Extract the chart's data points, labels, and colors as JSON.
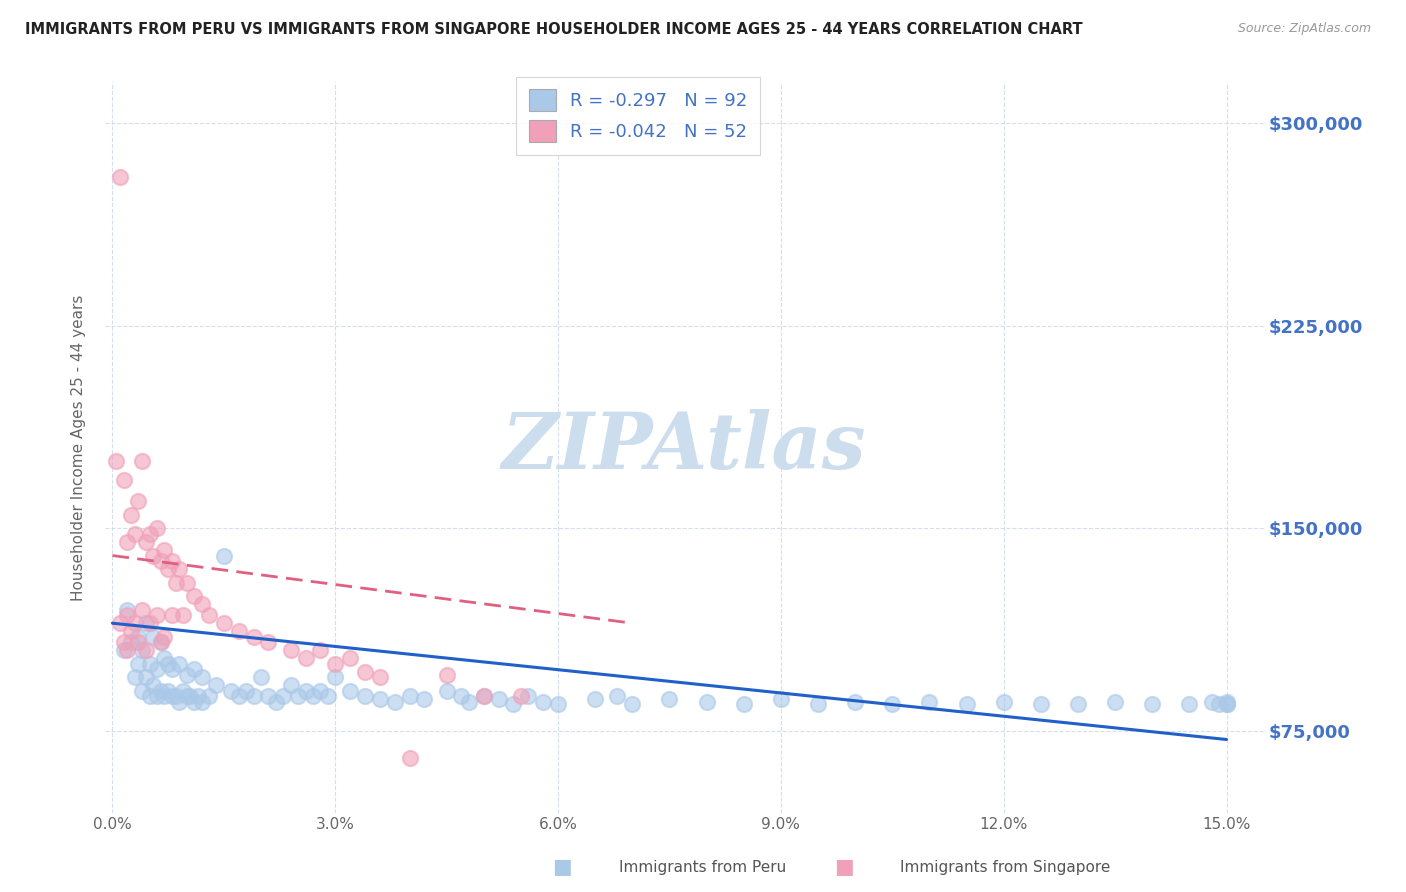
{
  "title": "IMMIGRANTS FROM PERU VS IMMIGRANTS FROM SINGAPORE HOUSEHOLDER INCOME AGES 25 - 44 YEARS CORRELATION CHART",
  "source": "Source: ZipAtlas.com",
  "ylabel": "Householder Income Ages 25 - 44 years",
  "xlabel_ticks": [
    "0.0%",
    "3.0%",
    "6.0%",
    "9.0%",
    "12.0%",
    "15.0%"
  ],
  "xlabel_vals": [
    0.0,
    3.0,
    6.0,
    9.0,
    12.0,
    15.0
  ],
  "ytick_labels": [
    "$75,000",
    "$150,000",
    "$225,000",
    "$300,000"
  ],
  "ytick_vals": [
    75000,
    150000,
    225000,
    300000
  ],
  "ylim": [
    45000,
    315000
  ],
  "xlim": [
    -0.1,
    15.5
  ],
  "legend_peru": "R = -0.297   N = 92",
  "legend_singapore": "R = -0.042   N = 52",
  "peru_color": "#aac8e8",
  "singapore_color": "#f0a0b8",
  "peru_line_color": "#2060c8",
  "singapore_line_color": "#e06080",
  "grid_color": "#c8d8e8",
  "background_color": "#ffffff",
  "watermark": "ZIPAtlas",
  "watermark_color": "#ccdded",
  "peru_trend_x0": 0.0,
  "peru_trend_y0": 115000,
  "peru_trend_x1": 15.0,
  "peru_trend_y1": 72000,
  "sing_trend_x0": 0.0,
  "sing_trend_y0": 140000,
  "sing_trend_x1": 7.0,
  "sing_trend_y1": 115000,
  "peru_scatter_x": [
    0.15,
    0.2,
    0.25,
    0.3,
    0.35,
    0.35,
    0.4,
    0.4,
    0.45,
    0.45,
    0.5,
    0.5,
    0.55,
    0.55,
    0.6,
    0.6,
    0.65,
    0.65,
    0.7,
    0.7,
    0.75,
    0.75,
    0.8,
    0.8,
    0.85,
    0.9,
    0.9,
    0.95,
    1.0,
    1.0,
    1.05,
    1.1,
    1.1,
    1.15,
    1.2,
    1.2,
    1.3,
    1.4,
    1.5,
    1.6,
    1.7,
    1.8,
    1.9,
    2.0,
    2.1,
    2.2,
    2.3,
    2.4,
    2.5,
    2.6,
    2.7,
    2.8,
    2.9,
    3.0,
    3.2,
    3.4,
    3.6,
    3.8,
    4.0,
    4.2,
    4.5,
    4.7,
    4.8,
    5.0,
    5.2,
    5.4,
    5.6,
    5.8,
    6.0,
    6.5,
    6.8,
    7.0,
    7.5,
    8.0,
    8.5,
    9.0,
    9.5,
    10.0,
    10.5,
    11.0,
    11.5,
    12.0,
    12.5,
    13.0,
    13.5,
    14.0,
    14.5,
    14.8,
    14.9,
    15.0,
    15.0,
    15.0
  ],
  "peru_scatter_y": [
    105000,
    120000,
    108000,
    95000,
    110000,
    100000,
    90000,
    105000,
    95000,
    115000,
    88000,
    100000,
    92000,
    110000,
    88000,
    98000,
    90000,
    108000,
    88000,
    102000,
    90000,
    100000,
    88000,
    98000,
    88000,
    86000,
    100000,
    90000,
    88000,
    96000,
    88000,
    86000,
    98000,
    88000,
    86000,
    95000,
    88000,
    92000,
    140000,
    90000,
    88000,
    90000,
    88000,
    95000,
    88000,
    86000,
    88000,
    92000,
    88000,
    90000,
    88000,
    90000,
    88000,
    95000,
    90000,
    88000,
    87000,
    86000,
    88000,
    87000,
    90000,
    88000,
    86000,
    88000,
    87000,
    85000,
    88000,
    86000,
    85000,
    87000,
    88000,
    85000,
    87000,
    86000,
    85000,
    87000,
    85000,
    86000,
    85000,
    86000,
    85000,
    86000,
    85000,
    85000,
    86000,
    85000,
    85000,
    86000,
    85000,
    85000,
    86000,
    85000
  ],
  "singapore_scatter_x": [
    0.05,
    0.1,
    0.1,
    0.15,
    0.15,
    0.2,
    0.2,
    0.2,
    0.25,
    0.25,
    0.3,
    0.3,
    0.35,
    0.35,
    0.4,
    0.4,
    0.45,
    0.45,
    0.5,
    0.5,
    0.55,
    0.6,
    0.6,
    0.65,
    0.65,
    0.7,
    0.7,
    0.75,
    0.8,
    0.8,
    0.85,
    0.9,
    0.95,
    1.0,
    1.1,
    1.2,
    1.3,
    1.5,
    1.7,
    1.9,
    2.1,
    2.4,
    2.6,
    2.8,
    3.0,
    3.2,
    3.4,
    3.6,
    4.0,
    4.5,
    5.0,
    5.5
  ],
  "singapore_scatter_y": [
    175000,
    280000,
    115000,
    168000,
    108000,
    145000,
    118000,
    105000,
    155000,
    112000,
    148000,
    115000,
    160000,
    108000,
    175000,
    120000,
    145000,
    105000,
    148000,
    115000,
    140000,
    150000,
    118000,
    138000,
    108000,
    142000,
    110000,
    135000,
    138000,
    118000,
    130000,
    135000,
    118000,
    130000,
    125000,
    122000,
    118000,
    115000,
    112000,
    110000,
    108000,
    105000,
    102000,
    105000,
    100000,
    102000,
    97000,
    95000,
    65000,
    96000,
    88000,
    88000
  ]
}
